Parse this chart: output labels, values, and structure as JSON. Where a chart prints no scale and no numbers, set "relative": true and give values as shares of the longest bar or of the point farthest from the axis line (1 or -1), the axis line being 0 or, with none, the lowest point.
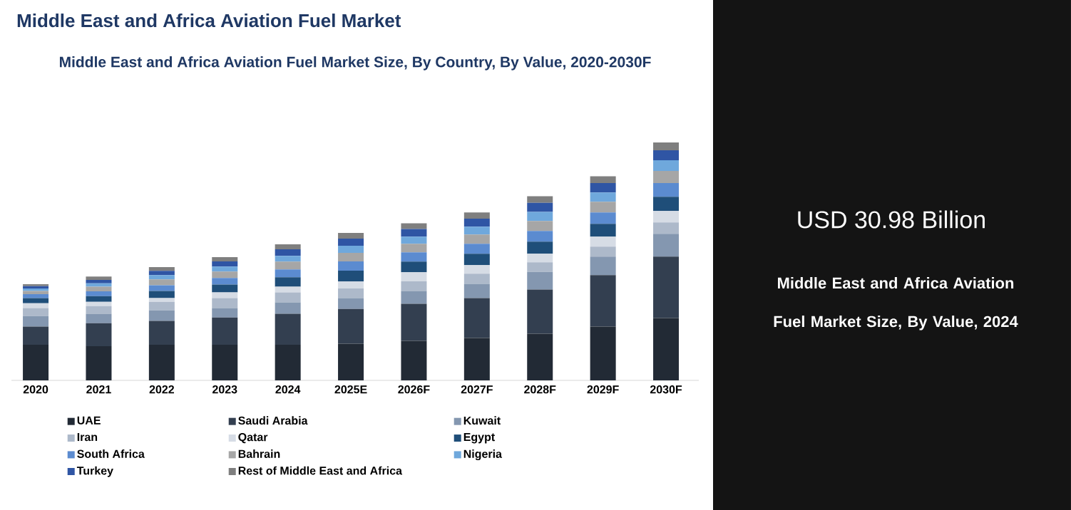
{
  "chart_data": [
    {
      "type": "bar",
      "stacked": true,
      "relative": true,
      "legend": "bottom",
      "title": "Middle East and Africa Aviation Fuel Market",
      "subtitle": "Middle East and Africa Aviation Fuel Market Size, By Country, By Value, 2020-2030F",
      "categories": [
        "2020",
        "2021",
        "2022",
        "2023",
        "2024",
        "2025E",
        "2026F",
        "2027F",
        "2028F",
        "2029F",
        "2030F"
      ],
      "series": [
        {
          "name": "UAE",
          "color": "#222a35",
          "values": [
            0.15,
            0.144,
            0.15,
            0.15,
            0.15,
            0.154,
            0.166,
            0.178,
            0.196,
            0.226,
            0.262
          ]
        },
        {
          "name": "Saudi Arabia",
          "color": "#333f50",
          "values": [
            0.076,
            0.096,
            0.1,
            0.114,
            0.13,
            0.146,
            0.156,
            0.168,
            0.186,
            0.216,
            0.258
          ]
        },
        {
          "name": "Kuwait",
          "color": "#8497b0",
          "values": [
            0.044,
            0.04,
            0.044,
            0.04,
            0.048,
            0.046,
            0.054,
            0.06,
            0.074,
            0.078,
            0.096
          ]
        },
        {
          "name": "Iran",
          "color": "#adb9ca",
          "values": [
            0.034,
            0.032,
            0.036,
            0.042,
            0.042,
            0.04,
            0.04,
            0.042,
            0.04,
            0.042,
            0.048
          ]
        },
        {
          "name": "Qatar",
          "color": "#d6dce5",
          "values": [
            0.02,
            0.018,
            0.016,
            0.024,
            0.024,
            0.03,
            0.038,
            0.036,
            0.036,
            0.042,
            0.048
          ]
        },
        {
          "name": "Egypt",
          "color": "#1f4e79",
          "values": [
            0.022,
            0.024,
            0.03,
            0.033,
            0.039,
            0.045,
            0.045,
            0.048,
            0.051,
            0.054,
            0.06
          ]
        },
        {
          "name": "South Africa",
          "color": "#5b8bd0",
          "values": [
            0.016,
            0.02,
            0.024,
            0.027,
            0.033,
            0.039,
            0.039,
            0.042,
            0.045,
            0.048,
            0.057
          ]
        },
        {
          "name": "Bahrain",
          "color": "#a6a6a6",
          "values": [
            0.014,
            0.02,
            0.024,
            0.027,
            0.033,
            0.036,
            0.036,
            0.039,
            0.042,
            0.045,
            0.051
          ]
        },
        {
          "name": "Nigeria",
          "color": "#6fa8dc",
          "values": [
            0.01,
            0.014,
            0.018,
            0.021,
            0.024,
            0.03,
            0.03,
            0.033,
            0.038,
            0.039,
            0.045
          ]
        },
        {
          "name": "Turkey",
          "color": "#2f55a4",
          "values": [
            0.01,
            0.014,
            0.018,
            0.022,
            0.028,
            0.03,
            0.032,
            0.034,
            0.038,
            0.039,
            0.042
          ]
        },
        {
          "name": "Rest of Middle East and Africa",
          "color": "#7f7f7f",
          "values": [
            0.008,
            0.014,
            0.016,
            0.018,
            0.021,
            0.024,
            0.024,
            0.026,
            0.028,
            0.029,
            0.033
          ]
        }
      ]
    },
    {
      "type": "other",
      "title": "USD 30.98 Billion",
      "subtitle": "Middle East and Africa Aviation Fuel Market Size, By Value, 2024"
    }
  ]
}
